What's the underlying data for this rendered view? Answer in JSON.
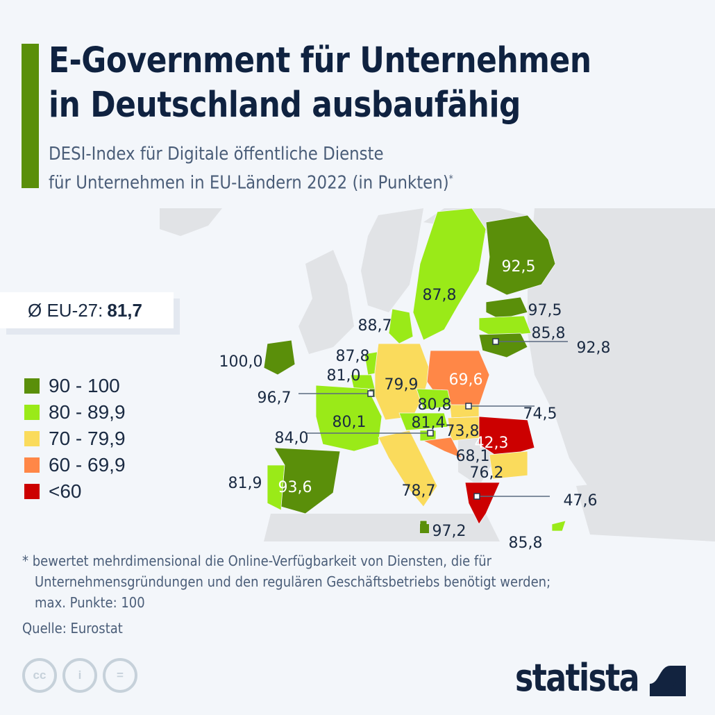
{
  "header": {
    "title_line1": "E-Government für Unternehmen",
    "title_line2": "in Deutschland ausbaufähig",
    "subtitle_line1": "DESI-Index für Digitale öffentliche Dienste",
    "subtitle_line2": "für Unternehmen in EU-Ländern 2022 (in Punkten)",
    "subtitle_marker": "*"
  },
  "average": {
    "label": "Ø EU-27:",
    "value": "81,7"
  },
  "legend": [
    {
      "label": "90 - 100",
      "color": "#5a8f0a"
    },
    {
      "label": "80 - 89,9",
      "color": "#9aea18"
    },
    {
      "label": "70 - 79,9",
      "color": "#fadb5c"
    },
    {
      "label": "60 - 69,9",
      "color": "#ff8747"
    },
    {
      "label": "<60",
      "color": "#cc0000"
    }
  ],
  "chart_data": {
    "type": "choropleth-map",
    "title": "E-Government für Unternehmen in Deutschland ausbaufähig",
    "subtitle": "DESI-Index für Digitale öffentliche Dienste für Unternehmen in EU-Ländern 2022 (in Punkten)",
    "unit": "Punkte",
    "eu_average": 81.7,
    "bins": [
      "90-100",
      "80-89,9",
      "70-79,9",
      "60-69,9",
      "<60"
    ],
    "regions": [
      {
        "country": "Finnland",
        "value": 92.5,
        "label": "92,5"
      },
      {
        "country": "Schweden",
        "value": 87.8,
        "label": "87,8"
      },
      {
        "country": "Estland",
        "value": 97.5,
        "label": "97,5"
      },
      {
        "country": "Lettland",
        "value": 85.8,
        "label": "85,8"
      },
      {
        "country": "Litauen",
        "value": 92.8,
        "label": "92,8"
      },
      {
        "country": "Dänemark",
        "value": 88.7,
        "label": "88,7"
      },
      {
        "country": "Irland",
        "value": 100.0,
        "label": "100,0"
      },
      {
        "country": "Niederlande",
        "value": 87.8,
        "label": "87,8"
      },
      {
        "country": "Belgien",
        "value": 81.0,
        "label": "81,0"
      },
      {
        "country": "Luxemburg",
        "value": 96.7,
        "label": "96,7"
      },
      {
        "country": "Deutschland",
        "value": 79.9,
        "label": "79,9"
      },
      {
        "country": "Polen",
        "value": 69.6,
        "label": "69,6"
      },
      {
        "country": "Tschechien",
        "value": 80.8,
        "label": "80,8"
      },
      {
        "country": "Slowakei",
        "value": 74.5,
        "label": "74,5"
      },
      {
        "country": "Frankreich",
        "value": 80.1,
        "label": "80,1"
      },
      {
        "country": "Österreich",
        "value": 81.4,
        "label": "81,4"
      },
      {
        "country": "Slowenien",
        "value": 84.0,
        "label": "84,0"
      },
      {
        "country": "Ungarn",
        "value": 73.8,
        "label": "73,8"
      },
      {
        "country": "Rumänien",
        "value": 42.3,
        "label": "42,3"
      },
      {
        "country": "Kroatien",
        "value": 68.1,
        "label": "68,1"
      },
      {
        "country": "Italien",
        "value": 78.7,
        "label": "78,7"
      },
      {
        "country": "Bulgarien",
        "value": 76.2,
        "label": "76,2"
      },
      {
        "country": "Portugal",
        "value": 81.9,
        "label": "81,9"
      },
      {
        "country": "Spanien",
        "value": 93.6,
        "label": "93,6"
      },
      {
        "country": "Griechenland",
        "value": 47.6,
        "label": "47,6"
      },
      {
        "country": "Malta",
        "value": 97.2,
        "label": "97,2"
      },
      {
        "country": "Zypern",
        "value": 85.8,
        "label": "85,8"
      }
    ]
  },
  "footnote": {
    "line1": "* bewertet mehrdimensional die Online-Verfügbarkeit von Diensten, die für",
    "line2": "Unternehmensgründungen und den regulären Geschäftsbetriebs benötigt werden;",
    "line3": "max. Punkte: 100"
  },
  "source": "Quelle: Eurostat",
  "license_icons": [
    "cc-icon",
    "attribution-icon",
    "no-derivatives-icon"
  ],
  "license_glyphs": {
    "cc": "cc",
    "by": "i",
    "nd": "="
  },
  "brand": "statista"
}
